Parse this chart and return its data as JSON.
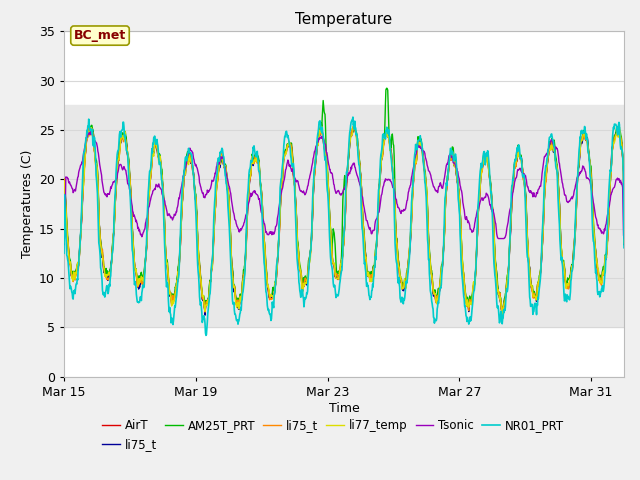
{
  "title": "Temperature",
  "xlabel": "Time",
  "ylabel": "Temperatures (C)",
  "ylim": [
    0,
    35
  ],
  "x_tick_labels": [
    "Mar 15",
    "Mar 19",
    "Mar 23",
    "Mar 27",
    "Mar 31"
  ],
  "x_tick_positions": [
    0,
    4,
    8,
    12,
    16
  ],
  "annotation_text": "BC_met",
  "shaded_band": [
    5.0,
    27.5
  ],
  "shaded_color": "#e8e8e8",
  "legend_entries": [
    {
      "label": "AirT",
      "color": "#dd0000",
      "lw": 1.0
    },
    {
      "label": "li75_t",
      "color": "#000099",
      "lw": 1.0
    },
    {
      "label": "AM25T_PRT",
      "color": "#00bb00",
      "lw": 1.0
    },
    {
      "label": "li75_t",
      "color": "#ff8800",
      "lw": 1.0
    },
    {
      "label": "li77_temp",
      "color": "#dddd00",
      "lw": 1.0
    },
    {
      "label": "Tsonic",
      "color": "#9900bb",
      "lw": 1.0
    },
    {
      "label": "NR01_PRT",
      "color": "#00cccc",
      "lw": 1.2
    }
  ],
  "fig_bg": "#f0f0f0",
  "plot_bg": "#ffffff",
  "grid_color": "#d8d8d8",
  "annotation_color": "#880000",
  "annotation_bg": "#ffffcc",
  "annotation_edge": "#999900"
}
